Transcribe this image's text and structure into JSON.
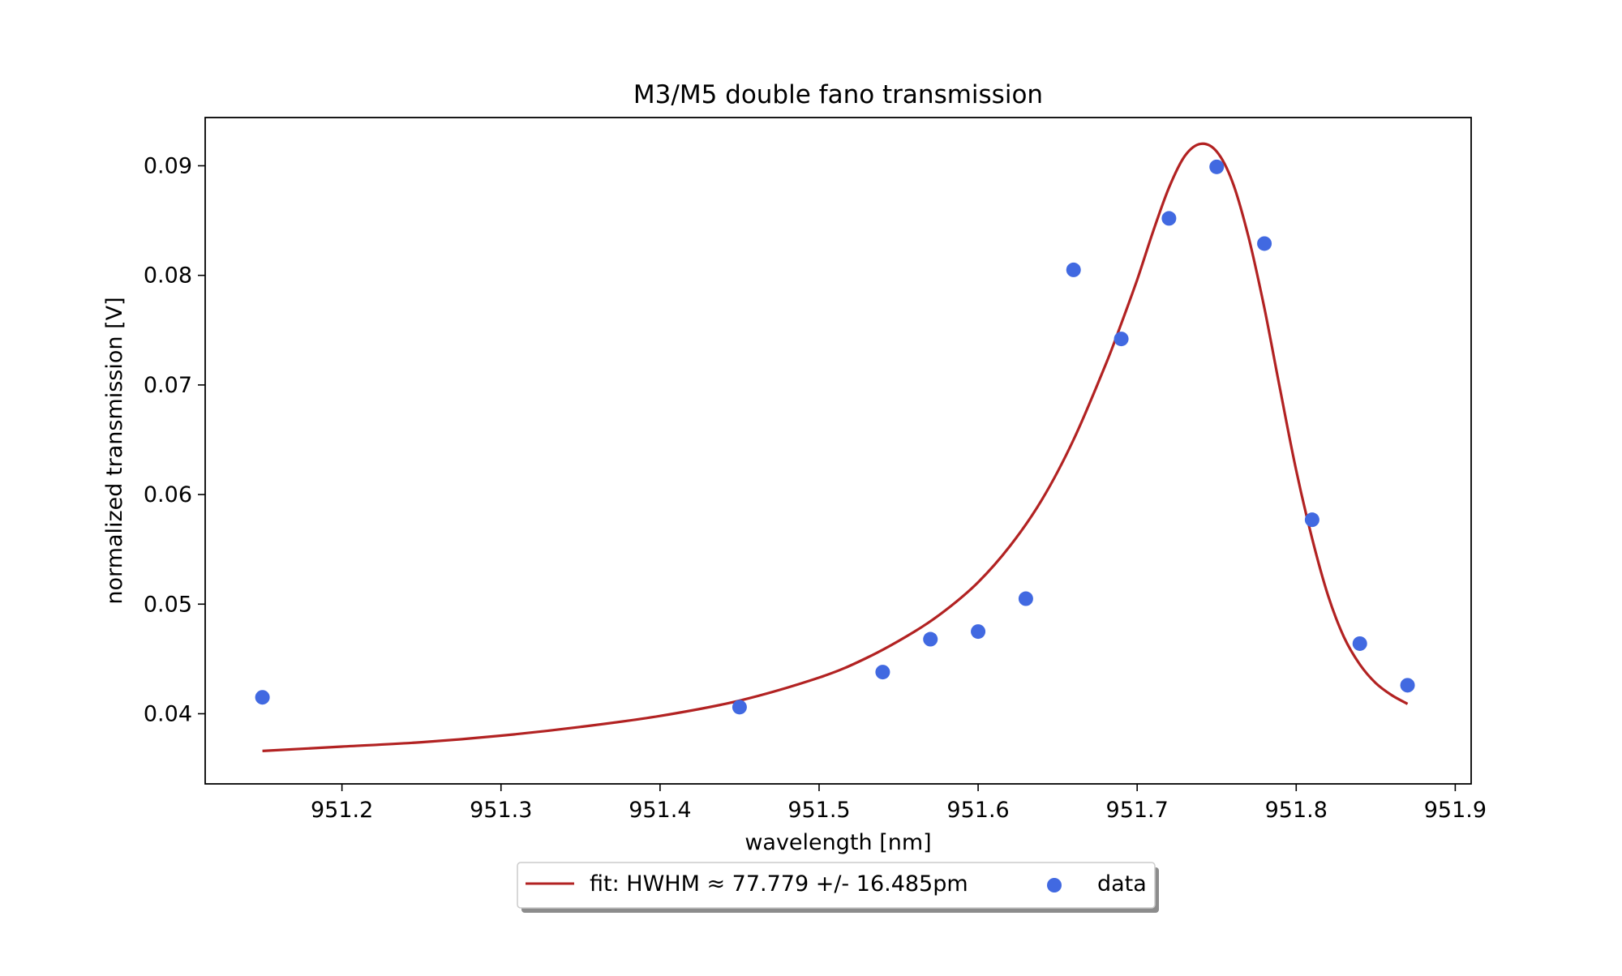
{
  "chart_data": {
    "type": "scatter",
    "title": "M3/M5 double fano transmission",
    "xlabel": "wavelength [nm]",
    "ylabel": "normalized transmission [V]",
    "xlim": [
      951.114,
      951.91
    ],
    "ylim": [
      0.0336,
      0.0944
    ],
    "xticks": [
      "951.2",
      "951.3",
      "951.4",
      "951.5",
      "951.6",
      "951.7",
      "951.8",
      "951.9"
    ],
    "xtick_values": [
      951.2,
      951.3,
      951.4,
      951.5,
      951.6,
      951.7,
      951.8,
      951.9
    ],
    "yticks": [
      "0.04",
      "0.05",
      "0.06",
      "0.07",
      "0.08",
      "0.09"
    ],
    "ytick_values": [
      0.04,
      0.05,
      0.06,
      0.07,
      0.08,
      0.09
    ],
    "grid": false,
    "legend_placement": "bottom-center, below plot",
    "series": [
      {
        "name": "fit: HWHM $\\approx$ 77.779 +/- 16.485pm",
        "display_name": "fit: HWHM ≈ 77.779 +/- 16.485pm",
        "kind": "line",
        "color": "#b22222",
        "x": [
          951.15,
          951.2,
          951.25,
          951.3,
          951.35,
          951.4,
          951.45,
          951.5,
          951.53,
          951.56,
          951.58,
          951.6,
          951.62,
          951.64,
          951.66,
          951.68,
          951.69,
          951.7,
          951.71,
          951.72,
          951.73,
          951.74,
          951.75,
          951.76,
          951.77,
          951.78,
          951.79,
          951.8,
          951.81,
          951.82,
          951.83,
          951.84,
          951.85,
          951.86,
          951.87
        ],
        "y": [
          0.0366,
          0.037,
          0.0374,
          0.038,
          0.0388,
          0.0398,
          0.0412,
          0.0433,
          0.0451,
          0.0475,
          0.0495,
          0.052,
          0.0553,
          0.0595,
          0.065,
          0.0718,
          0.0756,
          0.0796,
          0.084,
          0.088,
          0.0909,
          0.092,
          0.0913,
          0.0885,
          0.0835,
          0.077,
          0.0695,
          0.0622,
          0.056,
          0.0508,
          0.047,
          0.0445,
          0.0428,
          0.0417,
          0.0409
        ]
      },
      {
        "name": "data",
        "display_name": "data",
        "kind": "scatter",
        "color": "#4169e1",
        "x": [
          951.15,
          951.45,
          951.54,
          951.57,
          951.6,
          951.63,
          951.66,
          951.69,
          951.72,
          951.75,
          951.78,
          951.81,
          951.84,
          951.87
        ],
        "y": [
          0.0415,
          0.0406,
          0.0438,
          0.0468,
          0.0475,
          0.0505,
          0.0805,
          0.0742,
          0.0852,
          0.0899,
          0.0829,
          0.0577,
          0.0464,
          0.0426
        ]
      }
    ]
  }
}
